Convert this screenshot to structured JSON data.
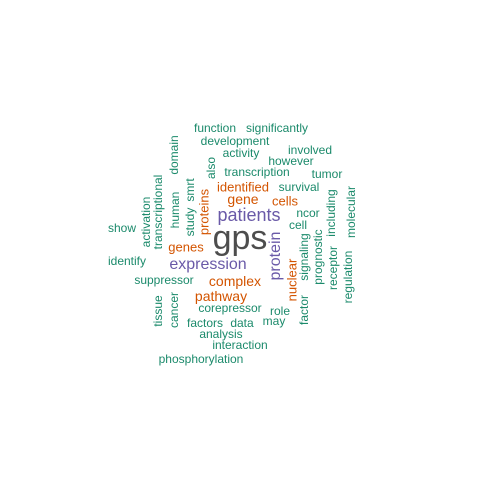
{
  "colors": {
    "dark": "#4d4d4d",
    "purple": "#6a5aa8",
    "orange": "#d35400",
    "teal": "#1b8a6b"
  },
  "words": [
    {
      "text": "gps",
      "color": "dark"
    },
    {
      "text": "patients",
      "color": "purple"
    },
    {
      "text": "expression",
      "color": "purple"
    },
    {
      "text": "protein",
      "color": "purple"
    },
    {
      "text": "gene",
      "color": "orange"
    },
    {
      "text": "complex",
      "color": "orange"
    },
    {
      "text": "pathway",
      "color": "orange"
    },
    {
      "text": "genes",
      "color": "orange"
    },
    {
      "text": "identified",
      "color": "orange"
    },
    {
      "text": "proteins",
      "color": "orange"
    },
    {
      "text": "nuclear",
      "color": "orange"
    },
    {
      "text": "cells",
      "color": "orange"
    },
    {
      "text": "function",
      "color": "teal"
    },
    {
      "text": "significantly",
      "color": "teal"
    },
    {
      "text": "development",
      "color": "teal"
    },
    {
      "text": "activity",
      "color": "teal"
    },
    {
      "text": "involved",
      "color": "teal"
    },
    {
      "text": "however",
      "color": "teal"
    },
    {
      "text": "transcription",
      "color": "teal"
    },
    {
      "text": "tumor",
      "color": "teal"
    },
    {
      "text": "survival",
      "color": "teal"
    },
    {
      "text": "ncor",
      "color": "teal"
    },
    {
      "text": "cell",
      "color": "teal"
    },
    {
      "text": "show",
      "color": "teal"
    },
    {
      "text": "identify",
      "color": "teal"
    },
    {
      "text": "suppressor",
      "color": "teal"
    },
    {
      "text": "corepressor",
      "color": "teal"
    },
    {
      "text": "factors",
      "color": "teal"
    },
    {
      "text": "data",
      "color": "teal"
    },
    {
      "text": "role",
      "color": "teal"
    },
    {
      "text": "may",
      "color": "teal"
    },
    {
      "text": "analysis",
      "color": "teal"
    },
    {
      "text": "interaction",
      "color": "teal"
    },
    {
      "text": "phosphorylation",
      "color": "teal"
    },
    {
      "text": "domain",
      "color": "teal"
    },
    {
      "text": "also",
      "color": "teal"
    },
    {
      "text": "human",
      "color": "teal"
    },
    {
      "text": "study",
      "color": "teal"
    },
    {
      "text": "smrt",
      "color": "teal"
    },
    {
      "text": "activation",
      "color": "teal"
    },
    {
      "text": "transcriptional",
      "color": "teal"
    },
    {
      "text": "tissue",
      "color": "teal"
    },
    {
      "text": "cancer",
      "color": "teal"
    },
    {
      "text": "signaling",
      "color": "teal"
    },
    {
      "text": "prognostic",
      "color": "teal"
    },
    {
      "text": "including",
      "color": "teal"
    },
    {
      "text": "receptor",
      "color": "teal"
    },
    {
      "text": "molecular",
      "color": "teal"
    },
    {
      "text": "regulation",
      "color": "teal"
    },
    {
      "text": "factor",
      "color": "teal"
    }
  ]
}
